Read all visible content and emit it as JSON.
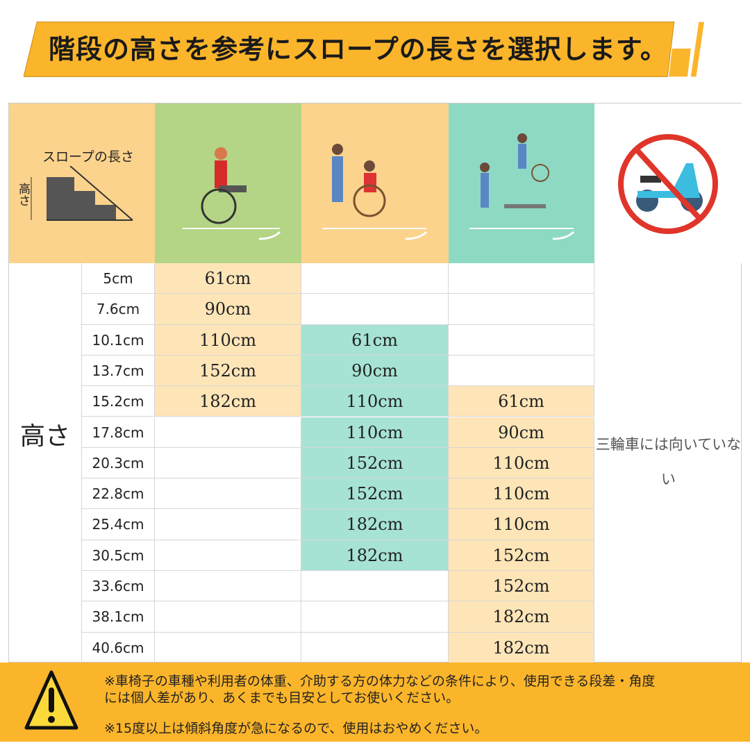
{
  "banner": {
    "title": "階段の高さを参考にスロープの長さを選択します。"
  },
  "header": {
    "diagram_slope_label": "スロープの長さ",
    "diagram_height_label": "高さ"
  },
  "colors": {
    "banner": "#fbb52b",
    "header_orange": "#fcd38d",
    "header_green": "#b3d585",
    "header_teal": "#8dd9c4",
    "cell_orange": "#fde5b8",
    "cell_teal": "#a6e3d4",
    "footer": "#fbb52b"
  },
  "table": {
    "side_label": "高さ",
    "no_tricycle_note": "三輪車には向いていない",
    "rows": [
      {
        "height": "5cm",
        "c1": "61cm",
        "c2": "",
        "c3": ""
      },
      {
        "height": "7.6cm",
        "c1": "90cm",
        "c2": "",
        "c3": ""
      },
      {
        "height": "10.1cm",
        "c1": "110cm",
        "c2": "61cm",
        "c3": ""
      },
      {
        "height": "13.7cm",
        "c1": "152cm",
        "c2": "90cm",
        "c3": ""
      },
      {
        "height": "15.2cm",
        "c1": "182cm",
        "c2": "110cm",
        "c3": "61cm"
      },
      {
        "height": "17.8cm",
        "c1": "",
        "c2": "110cm",
        "c3": "90cm"
      },
      {
        "height": "20.3cm",
        "c1": "",
        "c2": "152cm",
        "c3": "110cm"
      },
      {
        "height": "22.8cm",
        "c1": "",
        "c2": "152cm",
        "c3": "110cm"
      },
      {
        "height": "25.4cm",
        "c1": "",
        "c2": "182cm",
        "c3": "110cm"
      },
      {
        "height": "30.5cm",
        "c1": "",
        "c2": "182cm",
        "c3": "152cm"
      },
      {
        "height": "33.6cm",
        "c1": "",
        "c2": "",
        "c3": "152cm"
      },
      {
        "height": "38.1cm",
        "c1": "",
        "c2": "",
        "c3": "182cm"
      },
      {
        "height": "40.6cm",
        "c1": "",
        "c2": "",
        "c3": "182cm"
      }
    ]
  },
  "footer": {
    "icon": "warning-icon",
    "note1_line1": "※車椅子の車種や利用者の体重、介助する方の体力などの条件により、使用できる段差・角度",
    "note1_line2": "には個人差があり、あくまでも目安としてお使いください。",
    "note2": "※15度以上は傾斜角度が急になるので、使用はおやめください。"
  }
}
